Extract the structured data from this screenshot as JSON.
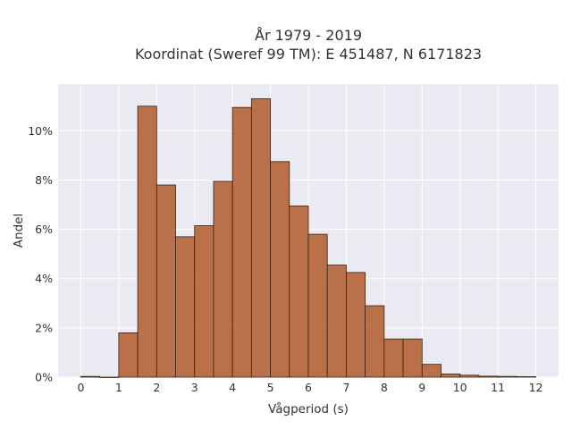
{
  "chart_data": {
    "type": "bar",
    "title": "År 1979 - 2019",
    "subtitle": "Koordinat (Sweref 99 TM): E 451487, N 6171823",
    "xlabel": "Vågperiod (s)",
    "ylabel": "Andel",
    "x_ticks": [
      "0",
      "1",
      "2",
      "3",
      "4",
      "5",
      "6",
      "7",
      "8",
      "9",
      "10",
      "11",
      "12"
    ],
    "y_ticks": [
      "0%",
      "2%",
      "4%",
      "6%",
      "8%",
      "10%"
    ],
    "xlim": [
      -0.6,
      12.6
    ],
    "ylim": [
      0,
      11.9
    ],
    "bin_width": 0.5,
    "bins": [
      {
        "start": 0.0,
        "value": 0.03
      },
      {
        "start": 0.5,
        "value": 0.0
      },
      {
        "start": 1.0,
        "value": 1.8
      },
      {
        "start": 1.5,
        "value": 11.0
      },
      {
        "start": 2.0,
        "value": 7.8
      },
      {
        "start": 2.5,
        "value": 5.7
      },
      {
        "start": 3.0,
        "value": 6.15
      },
      {
        "start": 3.5,
        "value": 7.95
      },
      {
        "start": 4.0,
        "value": 10.95
      },
      {
        "start": 4.5,
        "value": 11.3
      },
      {
        "start": 5.0,
        "value": 8.75
      },
      {
        "start": 5.5,
        "value": 6.95
      },
      {
        "start": 6.0,
        "value": 5.8
      },
      {
        "start": 6.5,
        "value": 4.55
      },
      {
        "start": 7.0,
        "value": 4.25
      },
      {
        "start": 7.5,
        "value": 2.9
      },
      {
        "start": 8.0,
        "value": 1.55
      },
      {
        "start": 8.5,
        "value": 1.55
      },
      {
        "start": 9.0,
        "value": 0.52
      },
      {
        "start": 9.5,
        "value": 0.13
      },
      {
        "start": 10.0,
        "value": 0.08
      },
      {
        "start": 10.5,
        "value": 0.04
      },
      {
        "start": 11.0,
        "value": 0.03
      },
      {
        "start": 11.5,
        "value": 0.02
      }
    ],
    "bar_color": "#b5663b",
    "bar_edge_color": "#3a2010",
    "plot_bg": "#eaeaf2",
    "grid": true,
    "legend": "none"
  }
}
